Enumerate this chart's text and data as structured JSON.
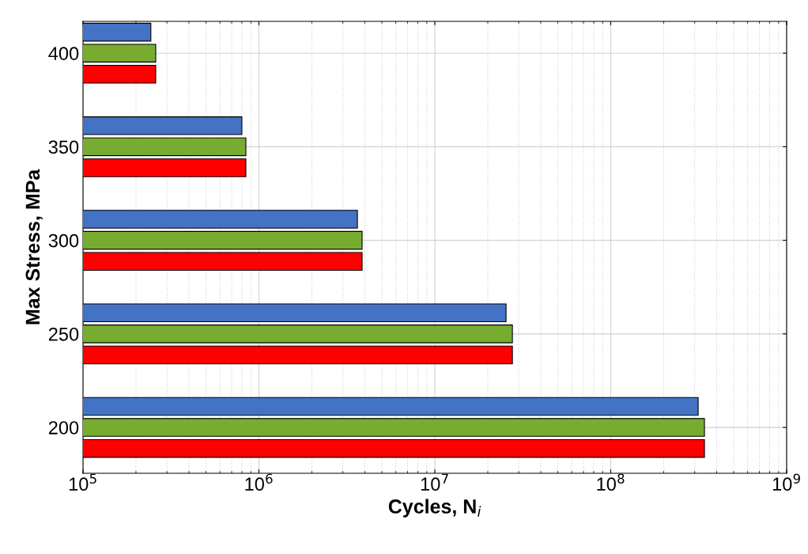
{
  "chart_data": {
    "type": "bar",
    "orientation": "horizontal",
    "xlabel": "Cycles, N$_{i}$",
    "ylabel": "Max Stress, MPa",
    "categories": [
      "400",
      "350",
      "300",
      "250",
      "200"
    ],
    "series": [
      {
        "color": "#ff0000",
        "values": [
          259000,
          843000,
          3860000,
          27600000,
          341000000
        ]
      },
      {
        "color": "#77ac30",
        "values": [
          259000,
          843000,
          3860000,
          27600000,
          341000000
        ]
      },
      {
        "color": "#4472c4",
        "values": [
          243000,
          800000,
          3630000,
          25400000,
          314000000
        ]
      }
    ],
    "log": "x",
    "xlim": [
      100000,
      1000000000
    ],
    "xticks": [
      {
        "value": 100000,
        "label": "10$^{5}$"
      },
      {
        "value": 1000000,
        "label": "10$^{6}$"
      },
      {
        "value": 10000000,
        "label": "10$^{7}$"
      },
      {
        "value": 100000000,
        "label": "10$^{8}$"
      },
      {
        "value": 1000000000,
        "label": "10$^{9}$"
      }
    ],
    "grid": true
  }
}
